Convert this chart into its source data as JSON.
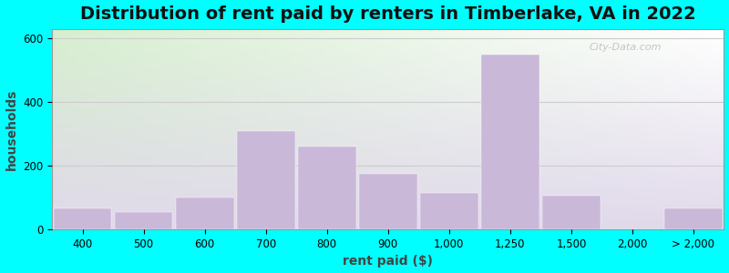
{
  "title": "Distribution of rent paid by renters in Timberlake, VA in 2022",
  "xlabel": "rent paid ($)",
  "ylabel": "households",
  "bar_color": "#c9b8d8",
  "background_outer": "#00ffff",
  "yticks": [
    0,
    200,
    400,
    600
  ],
  "ylim": [
    0,
    630
  ],
  "categories": [
    "400",
    "500",
    "600",
    "700",
    "800",
    "900",
    "1,000",
    "1,250",
    "1,500",
    "2,000",
    "> 2,000"
  ],
  "values": [
    65,
    55,
    100,
    310,
    260,
    175,
    115,
    550,
    105,
    0,
    65
  ],
  "x_positions": [
    0,
    1,
    2,
    3,
    4,
    5,
    6,
    7,
    8,
    9,
    10
  ],
  "title_fontsize": 14,
  "axis_label_fontsize": 10,
  "tick_fontsize": 8.5,
  "watermark_text": "City-Data.com"
}
